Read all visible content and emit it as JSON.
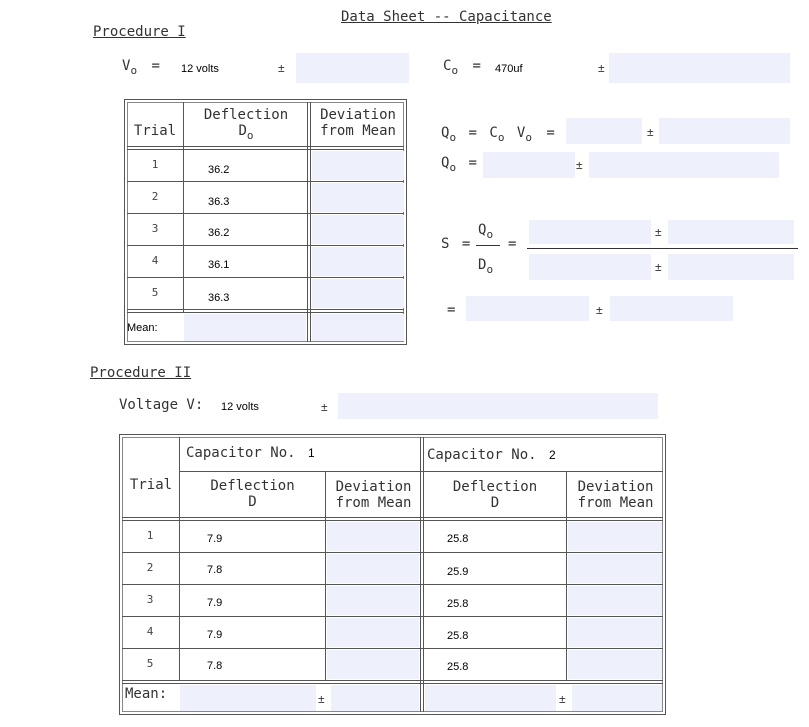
{
  "title": "Data Sheet -- Capacitance",
  "proc1": {
    "heading": "Procedure I",
    "vo_label": "V",
    "vo_sub": "o",
    "vo_eq": "=",
    "vo_value": "12 volts",
    "pm": "±",
    "co_label": "C",
    "co_sub": "o",
    "co_eq": "=",
    "co_value": "470uf",
    "table": {
      "col_trial": "Trial",
      "col_deflection": "Deflection",
      "col_deflection_sym": "D",
      "col_deflection_sub": "o",
      "col_dev_1": "Deviation",
      "col_dev_2": "from Mean",
      "trials": [
        "1",
        "2",
        "3",
        "4",
        "5"
      ],
      "values": [
        "36.2",
        "36.3",
        "36.2",
        "36.1",
        "36.3"
      ],
      "mean_label": "Mean:"
    },
    "qo_line1": {
      "q": "Q",
      "qsub": "o",
      "eq": "=",
      "c": "C",
      "csub": "o",
      "v": "V",
      "vsub": "o",
      "eq2": "="
    },
    "qo_line2": {
      "q": "Q",
      "qsub": "o",
      "eq": "="
    },
    "s": {
      "label": "S",
      "eq": "=",
      "num": "Q",
      "numsub": "o",
      "den": "D",
      "densub": "o",
      "eq2": "=",
      "eq3": "="
    }
  },
  "proc2": {
    "heading": "Procedure II",
    "voltage_label": "Voltage V:",
    "voltage_value": "12 volts",
    "pm": "±",
    "table": {
      "col_trial": "Trial",
      "cap1_label": "Capacitor No.",
      "cap1_no": "1",
      "cap2_label": "Capacitor No.",
      "cap2_no": "2",
      "deflection": "Deflection",
      "deflection_sym": "D",
      "dev_1": "Deviation",
      "dev_2": "from Mean",
      "trials": [
        "1",
        "2",
        "3",
        "4",
        "5"
      ],
      "cap1_values": [
        "7.9",
        "7.8",
        "7.9",
        "7.9",
        "7.8"
      ],
      "cap2_values": [
        "25.8",
        "25.9",
        "25.8",
        "25.8",
        "25.8"
      ],
      "mean_label": "Mean:"
    }
  }
}
